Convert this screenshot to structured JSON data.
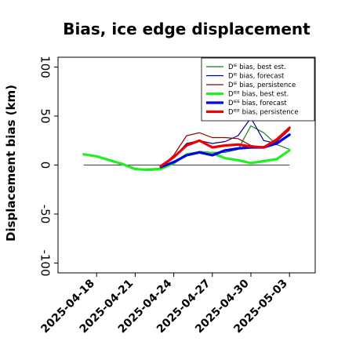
{
  "chart_data": {
    "type": "line",
    "title": "Bias, ice edge displacement",
    "xlabel": "",
    "ylabel": "Displacement bias (km)",
    "ylim": [
      -110,
      110
    ],
    "yticks": [
      -100,
      -50,
      0,
      50,
      100
    ],
    "xlim": [
      "2025-04-15",
      "2025-05-05"
    ],
    "xticks": [
      "2025-04-18",
      "2025-04-21",
      "2025-04-24",
      "2025-04-27",
      "2025-04-30",
      "2025-05-03"
    ],
    "xtick_colors": [
      "#000000",
      "#000000",
      "#2e8b22",
      "#000000",
      "#000000",
      "#000000"
    ],
    "zero_line": true,
    "grid": false,
    "legend_position": "top-right",
    "series": [
      {
        "name": "Dᴵᴱ bias, best est.",
        "color": "#1a7a1a",
        "width": 1.2,
        "x": [
          "2025-04-17",
          "2025-04-18",
          "2025-04-19",
          "2025-04-20",
          "2025-04-21",
          "2025-04-22",
          "2025-04-23",
          "2025-04-24",
          "2025-04-25",
          "2025-04-26",
          "2025-04-27",
          "2025-04-28",
          "2025-04-29",
          "2025-04-30",
          "2025-05-01",
          "2025-05-02",
          "2025-05-03"
        ],
        "values": [
          11,
          9,
          5,
          2,
          -4,
          -4,
          -3,
          2,
          10,
          14,
          13,
          13,
          16,
          40,
          33,
          21,
          16
        ]
      },
      {
        "name": "Dᴵᴱ bias, forecast",
        "color": "#00008b",
        "width": 1.2,
        "x": [
          "2025-04-23",
          "2025-04-24",
          "2025-04-25",
          "2025-04-26",
          "2025-04-27",
          "2025-04-28",
          "2025-04-29",
          "2025-04-30",
          "2025-05-01",
          "2025-05-02",
          "2025-05-03"
        ],
        "values": [
          -2,
          8,
          22,
          25,
          22,
          24,
          30,
          48,
          25,
          22,
          30
        ]
      },
      {
        "name": "Dᴵᴱ bias, persistence",
        "color": "#8b0000",
        "width": 1.2,
        "x": [
          "2025-04-23",
          "2025-04-24",
          "2025-04-25",
          "2025-04-26",
          "2025-04-27",
          "2025-04-28",
          "2025-04-29",
          "2025-04-30",
          "2025-05-01",
          "2025-05-02",
          "2025-05-03"
        ],
        "values": [
          -2,
          10,
          30,
          33,
          28,
          28,
          27,
          20,
          18,
          24,
          36
        ]
      },
      {
        "name": "Dᴵᴱᴱ bias, best est.",
        "color": "#22ee22",
        "width": 3.2,
        "x": [
          "2025-04-17",
          "2025-04-18",
          "2025-04-19",
          "2025-04-20",
          "2025-04-21",
          "2025-04-22",
          "2025-04-23",
          "2025-04-24",
          "2025-04-25",
          "2025-04-26",
          "2025-04-27",
          "2025-04-28",
          "2025-04-29",
          "2025-04-30",
          "2025-05-01",
          "2025-05-02",
          "2025-05-03"
        ],
        "values": [
          11,
          9,
          5,
          1,
          -4,
          -5,
          -4,
          2,
          11,
          13,
          12,
          7,
          5,
          2,
          4,
          6,
          15
        ]
      },
      {
        "name": "Dᴵᴱᴱ bias, forecast",
        "color": "#0000ee",
        "width": 3.2,
        "x": [
          "2025-04-23",
          "2025-04-24",
          "2025-04-25",
          "2025-04-26",
          "2025-04-27",
          "2025-04-28",
          "2025-04-29",
          "2025-04-30",
          "2025-05-01",
          "2025-05-02",
          "2025-05-03"
        ],
        "values": [
          -2,
          3,
          10,
          13,
          10,
          15,
          17,
          18,
          18,
          22,
          31
        ]
      },
      {
        "name": "Dᴵᴱᴱ bias, persistence",
        "color": "#ee0000",
        "width": 3.2,
        "x": [
          "2025-04-23",
          "2025-04-24",
          "2025-04-25",
          "2025-04-26",
          "2025-04-27",
          "2025-04-28",
          "2025-04-29",
          "2025-04-30",
          "2025-05-01",
          "2025-05-02",
          "2025-05-03"
        ],
        "values": [
          -1,
          8,
          20,
          25,
          18,
          20,
          21,
          19,
          18,
          26,
          38
        ]
      }
    ]
  }
}
